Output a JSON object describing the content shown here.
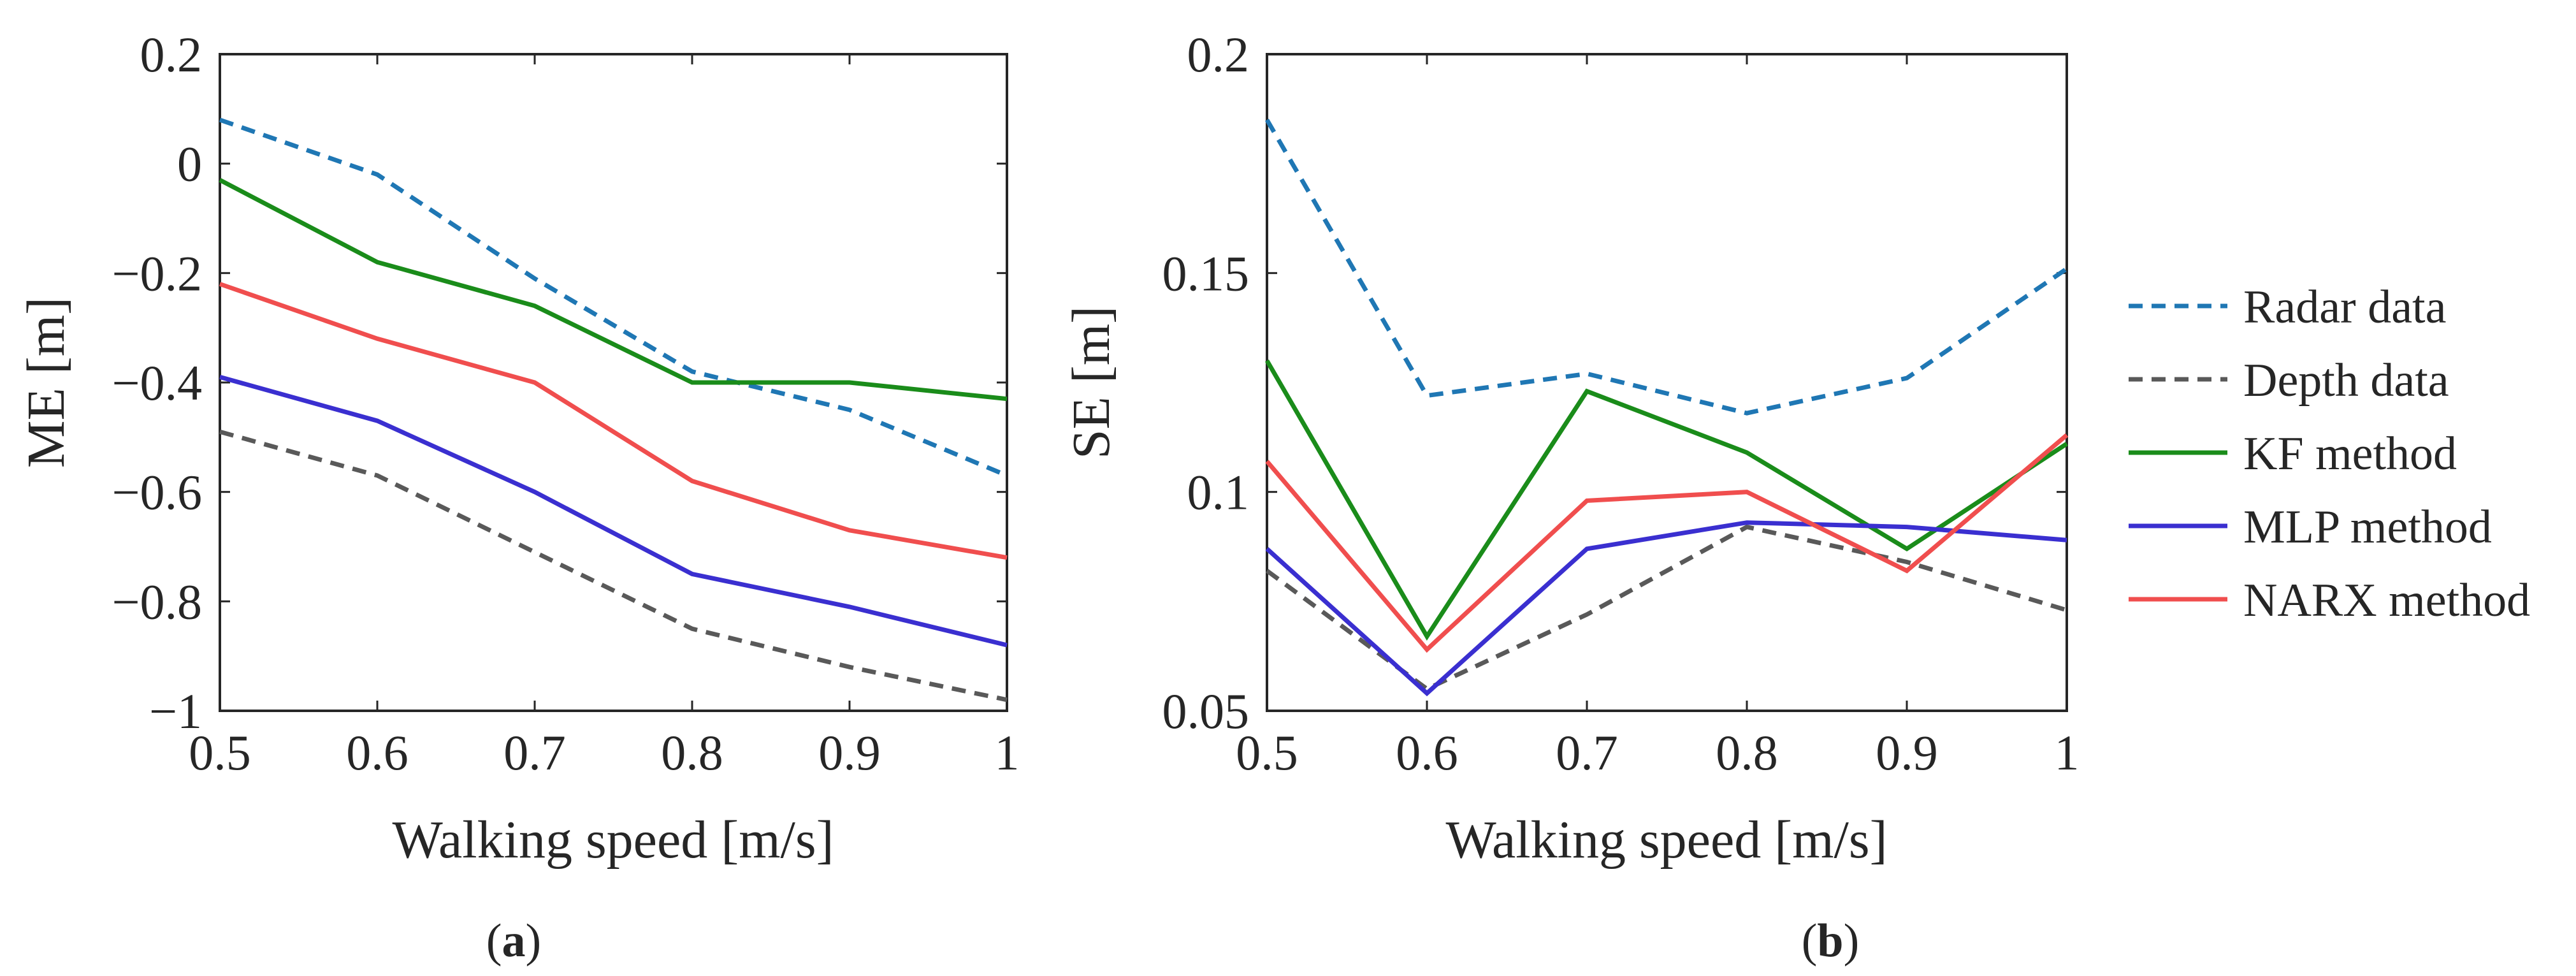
{
  "chart_data": [
    {
      "type": "line",
      "panel": "a",
      "caption_open": "(",
      "caption_letter": "a",
      "caption_close": ")",
      "xlabel": "Walking speed [m/s]",
      "ylabel": "ME [m]",
      "xlim": [
        0.5,
        1.0
      ],
      "ylim": [
        -1.0,
        0.2
      ],
      "xticks": [
        0.5,
        0.6,
        0.7,
        0.8,
        0.9,
        1.0
      ],
      "xtick_labels": [
        "0.5",
        "0.6",
        "0.7",
        "0.8",
        "0.9",
        "1"
      ],
      "yticks": [
        -1.0,
        -0.8,
        -0.6,
        -0.4,
        -0.2,
        0.0,
        0.2
      ],
      "ytick_labels": [
        "−1",
        "−0.8",
        "−0.6",
        "−0.4",
        "−0.2",
        "0",
        "0.2"
      ],
      "x": [
        0.5,
        0.6,
        0.7,
        0.8,
        0.9,
        1.0
      ],
      "series": [
        {
          "name": "Radar data",
          "color": "#1f77b4",
          "dashed": true,
          "values": [
            0.08,
            -0.02,
            -0.21,
            -0.38,
            -0.45,
            -0.57
          ]
        },
        {
          "name": "Depth data",
          "color": "#595959",
          "dashed": true,
          "values": [
            -0.49,
            -0.57,
            -0.71,
            -0.85,
            -0.92,
            -0.98
          ]
        },
        {
          "name": "KF method",
          "color": "#1a8c1a",
          "dashed": false,
          "values": [
            -0.03,
            -0.18,
            -0.26,
            -0.4,
            -0.4,
            -0.43
          ]
        },
        {
          "name": "MLP method",
          "color": "#3a2fd0",
          "dashed": false,
          "values": [
            -0.39,
            -0.47,
            -0.6,
            -0.75,
            -0.81,
            -0.88
          ]
        },
        {
          "name": "NARX method",
          "color": "#f04e4e",
          "dashed": false,
          "values": [
            -0.22,
            -0.32,
            -0.4,
            -0.58,
            -0.67,
            -0.72
          ]
        }
      ]
    },
    {
      "type": "line",
      "panel": "b",
      "caption_open": "(",
      "caption_letter": "b",
      "caption_close": ")",
      "xlabel": "Walking speed [m/s]",
      "ylabel": "SE [m]",
      "xlim": [
        0.5,
        1.0
      ],
      "ylim": [
        0.05,
        0.2
      ],
      "xticks": [
        0.5,
        0.6,
        0.7,
        0.8,
        0.9,
        1.0
      ],
      "xtick_labels": [
        "0.5",
        "0.6",
        "0.7",
        "0.8",
        "0.9",
        "1"
      ],
      "yticks": [
        0.05,
        0.1,
        0.15,
        0.2
      ],
      "ytick_labels": [
        "0.05",
        "0.1",
        "0.15",
        "0.2"
      ],
      "x": [
        0.5,
        0.6,
        0.7,
        0.8,
        0.9,
        1.0
      ],
      "series": [
        {
          "name": "Radar data",
          "color": "#1f77b4",
          "dashed": true,
          "values": [
            0.185,
            0.122,
            0.127,
            0.118,
            0.126,
            0.151
          ]
        },
        {
          "name": "Depth data",
          "color": "#595959",
          "dashed": true,
          "values": [
            0.082,
            0.055,
            0.072,
            0.092,
            0.084,
            0.073
          ]
        },
        {
          "name": "KF method",
          "color": "#1a8c1a",
          "dashed": false,
          "values": [
            0.13,
            0.067,
            0.123,
            0.109,
            0.087,
            0.111
          ]
        },
        {
          "name": "MLP method",
          "color": "#3a2fd0",
          "dashed": false,
          "values": [
            0.087,
            0.054,
            0.087,
            0.093,
            0.092,
            0.089
          ]
        },
        {
          "name": "NARX method",
          "color": "#f04e4e",
          "dashed": false,
          "values": [
            0.107,
            0.064,
            0.098,
            0.1,
            0.082,
            0.113
          ]
        }
      ]
    }
  ],
  "legend": [
    {
      "label": "Radar data",
      "color": "#1f77b4",
      "dashed": true
    },
    {
      "label": "Depth data",
      "color": "#595959",
      "dashed": true
    },
    {
      "label": "KF method",
      "color": "#1a8c1a",
      "dashed": false
    },
    {
      "label": "MLP method",
      "color": "#3a2fd0",
      "dashed": false
    },
    {
      "label": "NARX method",
      "color": "#f04e4e",
      "dashed": false
    }
  ]
}
